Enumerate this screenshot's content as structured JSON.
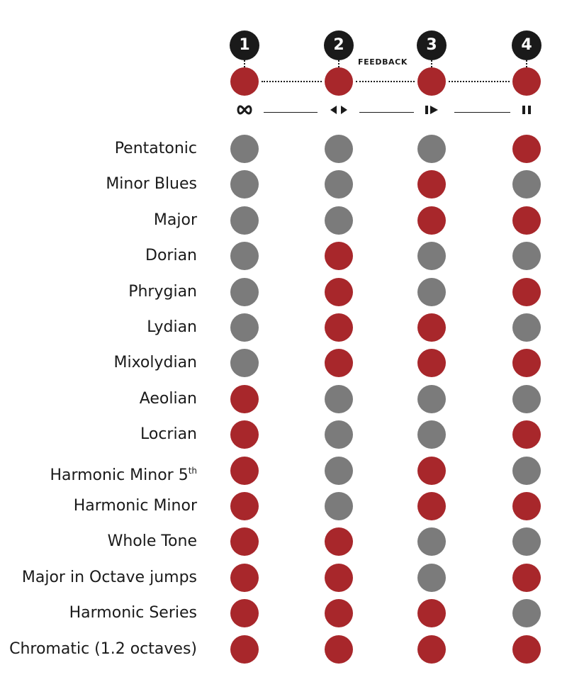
{
  "colors": {
    "on": "#a8272b",
    "off": "#7b7b7b"
  },
  "header": {
    "numbers": [
      "1",
      "2",
      "3",
      "4"
    ],
    "feedback_label": "FEEDBACK",
    "top_states": [
      "on",
      "on",
      "on",
      "on"
    ],
    "mode_icons": [
      "infinity-icon",
      "bounce-icon",
      "play-once-icon",
      "pause-icon"
    ]
  },
  "rows": [
    {
      "label": "Pentatonic",
      "sup": "",
      "states": [
        "off",
        "off",
        "off",
        "on"
      ]
    },
    {
      "label": "Minor Blues",
      "sup": "",
      "states": [
        "off",
        "off",
        "on",
        "off"
      ]
    },
    {
      "label": "Major",
      "sup": "",
      "states": [
        "off",
        "off",
        "on",
        "on"
      ]
    },
    {
      "label": "Dorian",
      "sup": "",
      "states": [
        "off",
        "on",
        "off",
        "off"
      ]
    },
    {
      "label": "Phrygian",
      "sup": "",
      "states": [
        "off",
        "on",
        "off",
        "on"
      ]
    },
    {
      "label": "Lydian",
      "sup": "",
      "states": [
        "off",
        "on",
        "on",
        "off"
      ]
    },
    {
      "label": "Mixolydian",
      "sup": "",
      "states": [
        "off",
        "on",
        "on",
        "on"
      ]
    },
    {
      "label": "Aeolian",
      "sup": "",
      "states": [
        "on",
        "off",
        "off",
        "off"
      ]
    },
    {
      "label": "Locrian",
      "sup": "",
      "states": [
        "on",
        "off",
        "off",
        "on"
      ]
    },
    {
      "label": "Harmonic Minor 5",
      "sup": "th",
      "states": [
        "on",
        "off",
        "on",
        "off"
      ]
    },
    {
      "label": "Harmonic Minor",
      "sup": "",
      "states": [
        "on",
        "off",
        "on",
        "on"
      ]
    },
    {
      "label": "Whole Tone",
      "sup": "",
      "states": [
        "on",
        "on",
        "off",
        "off"
      ]
    },
    {
      "label": "Major in Octave jumps",
      "sup": "",
      "states": [
        "on",
        "on",
        "off",
        "on"
      ]
    },
    {
      "label": "Harmonic Series",
      "sup": "",
      "states": [
        "on",
        "on",
        "on",
        "off"
      ]
    },
    {
      "label": "Chromatic (1.2 octaves)",
      "sup": "",
      "states": [
        "on",
        "on",
        "on",
        "on"
      ]
    }
  ]
}
